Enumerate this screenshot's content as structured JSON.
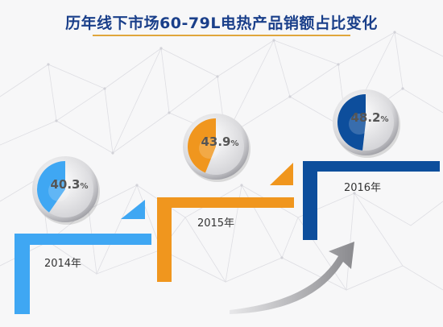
{
  "title": "历年线下市场60-79L电热产品销额占比变化",
  "chart_data": {
    "type": "pie",
    "categories": [
      "2014年",
      "2015年",
      "2016年"
    ],
    "values": [
      40.3,
      43.9,
      48.2
    ],
    "unit": "%",
    "colors": [
      "#3fa7f3",
      "#f0961e",
      "#0d4e9c"
    ]
  }
}
